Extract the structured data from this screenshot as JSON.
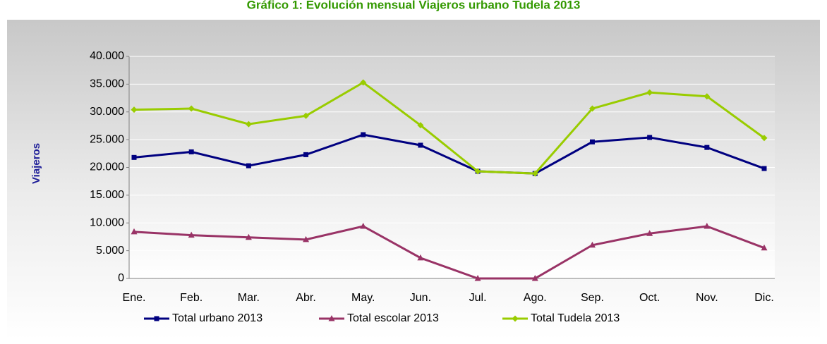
{
  "chart_data": {
    "type": "line",
    "title": "Gráfico 1: Evolución mensual Viajeros urbano Tudela 2013",
    "y_label": "Viajeros",
    "categories": [
      "Ene.",
      "Feb.",
      "Mar.",
      "Abr.",
      "May.",
      "Jun.",
      "Jul.",
      "Ago.",
      "Sep.",
      "Oct.",
      "Nov.",
      "Dic."
    ],
    "series": [
      {
        "name": "Total urbano 2013",
        "color": "#000080",
        "marker": "square",
        "values": [
          21800,
          22800,
          20300,
          22300,
          25900,
          24000,
          19300,
          18900,
          24600,
          25400,
          23600,
          19800
        ]
      },
      {
        "name": "Total escolar 2013",
        "color": "#993366",
        "marker": "triangle",
        "values": [
          8400,
          7800,
          7400,
          7000,
          9400,
          3700,
          0,
          0,
          6000,
          8100,
          9400,
          5500
        ]
      },
      {
        "name": "Total Tudela 2013",
        "color": "#99cc00",
        "marker": "diamond",
        "values": [
          30400,
          30600,
          27800,
          29300,
          35300,
          27600,
          19300,
          18900,
          30600,
          33500,
          32800,
          25300
        ]
      }
    ],
    "ylim": [
      0,
      40000
    ],
    "yticks": [
      0,
      {
        "value": 5000,
        "label": "5.000"
      },
      {
        "value": 10000,
        "label": "10.000"
      },
      {
        "value": 15000,
        "label": "15.000"
      },
      {
        "value": 20000,
        "label": "20.000"
      },
      {
        "value": 25000,
        "label": "25.000"
      },
      {
        "value": 30000,
        "label": "30.000"
      },
      {
        "value": 35000,
        "label": "35.000"
      },
      {
        "value": 40000,
        "label": "40.000"
      }
    ],
    "grid": true,
    "legend": "bottom"
  }
}
